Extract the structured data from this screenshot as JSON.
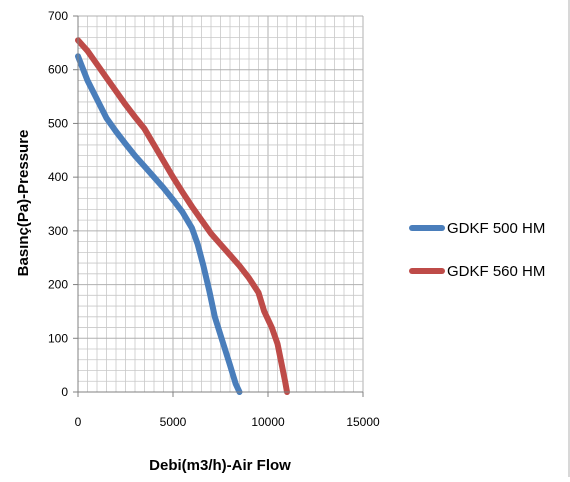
{
  "chart_data": {
    "type": "line",
    "title": "",
    "xlabel": "Debi(m3/h)-Air Flow",
    "ylabel": "Basınç(Pa)-Pressure",
    "xlim": [
      0,
      15000
    ],
    "ylim": [
      0,
      700
    ],
    "x_ticks": [
      0,
      5000,
      10000,
      15000
    ],
    "y_ticks": [
      0,
      100,
      200,
      300,
      400,
      500,
      600,
      700
    ],
    "minor_x_step": 500,
    "minor_y_step": 20,
    "grid": true,
    "legend_position": "right",
    "series": [
      {
        "name": "GDKF 500 HM",
        "color": "#4a7ebb",
        "points": [
          [
            0,
            625
          ],
          [
            500,
            580
          ],
          [
            1000,
            545
          ],
          [
            1500,
            510
          ],
          [
            2000,
            485
          ],
          [
            2500,
            462
          ],
          [
            3000,
            440
          ],
          [
            3500,
            420
          ],
          [
            4000,
            400
          ],
          [
            4500,
            380
          ],
          [
            5000,
            358
          ],
          [
            5500,
            335
          ],
          [
            6000,
            305
          ],
          [
            6300,
            275
          ],
          [
            6600,
            235
          ],
          [
            6900,
            190
          ],
          [
            7200,
            140
          ],
          [
            7600,
            95
          ],
          [
            8000,
            50
          ],
          [
            8300,
            15
          ],
          [
            8500,
            0
          ]
        ]
      },
      {
        "name": "GDKF 560 HM",
        "color": "#be4b48",
        "points": [
          [
            0,
            655
          ],
          [
            500,
            635
          ],
          [
            1000,
            610
          ],
          [
            1500,
            585
          ],
          [
            2000,
            560
          ],
          [
            2500,
            535
          ],
          [
            3000,
            512
          ],
          [
            3500,
            490
          ],
          [
            4000,
            460
          ],
          [
            4500,
            430
          ],
          [
            5000,
            400
          ],
          [
            5500,
            372
          ],
          [
            6000,
            345
          ],
          [
            6500,
            320
          ],
          [
            7000,
            295
          ],
          [
            7500,
            275
          ],
          [
            8000,
            255
          ],
          [
            8500,
            235
          ],
          [
            9000,
            212
          ],
          [
            9500,
            185
          ],
          [
            9800,
            150
          ],
          [
            10200,
            120
          ],
          [
            10500,
            90
          ],
          [
            10700,
            55
          ],
          [
            10900,
            20
          ],
          [
            11000,
            0
          ]
        ]
      }
    ]
  }
}
